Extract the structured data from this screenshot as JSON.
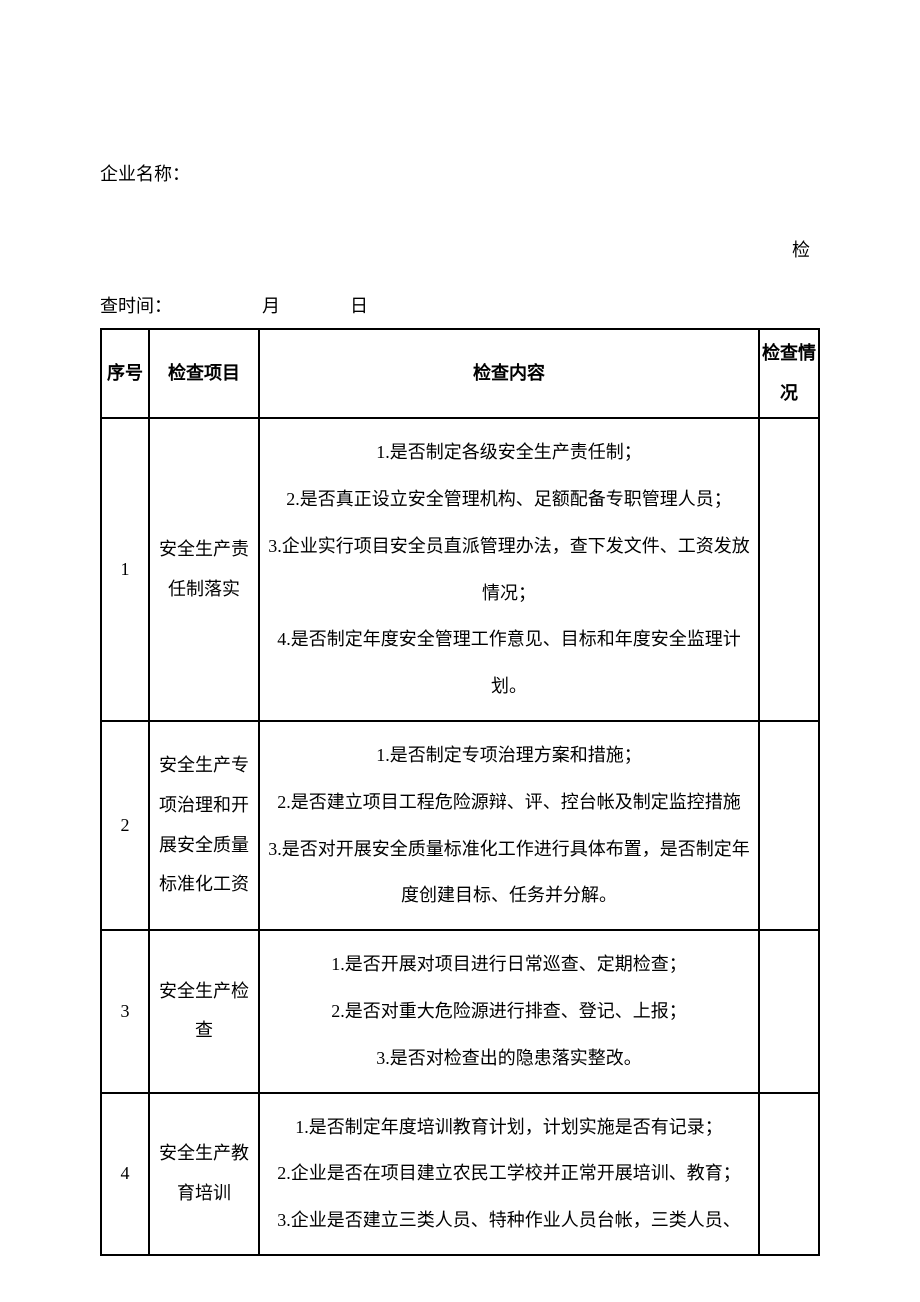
{
  "header": {
    "company_label": "企业名称：",
    "check_label_right": "检",
    "check_time_prefix": "查时间：",
    "month_char": "月",
    "day_char": "日"
  },
  "table": {
    "headers": {
      "seq": "序号",
      "item": "检查项目",
      "content": "检查内容",
      "status": "检查情况"
    },
    "rows": [
      {
        "seq": "1",
        "item": "安全生产责任制落实",
        "content_lines": [
          "1.是否制定各级安全生产责任制；",
          "2.是否真正设立安全管理机构、足额配备专职管理人员；",
          "3.企业实行项目安全员直派管理办法，查下发文件、工资发放情况；",
          "4.是否制定年度安全管理工作意见、目标和年度安全监理计划。"
        ],
        "status": ""
      },
      {
        "seq": "2",
        "item": "安全生产专项治理和开展安全质量标准化工资",
        "content_lines": [
          "1.是否制定专项治理方案和措施；",
          "2.是否建立项目工程危险源辩、评、控台帐及制定监控措施",
          "3.是否对开展安全质量标准化工作进行具体布置，是否制定年度创建目标、任务并分解。"
        ],
        "status": ""
      },
      {
        "seq": "3",
        "item": "安全生产检查",
        "content_lines": [
          "1.是否开展对项目进行日常巡查、定期检查；",
          "2.是否对重大危险源进行排查、登记、上报；",
          "3.是否对检查出的隐患落实整改。"
        ],
        "status": ""
      },
      {
        "seq": "4",
        "item": "安全生产教育培训",
        "content_lines": [
          "1.是否制定年度培训教育计划，计划实施是否有记录；",
          "2.企业是否在项目建立农民工学校并正常开展培训、教育；",
          "3.企业是否建立三类人员、特种作业人员台帐，三类人员、"
        ],
        "status": ""
      }
    ]
  },
  "style": {
    "background_color": "#ffffff",
    "text_color": "#000000",
    "border_color": "#000000",
    "font_size_body": 18,
    "col_widths": {
      "seq": 48,
      "item": 110,
      "status": 60
    }
  }
}
